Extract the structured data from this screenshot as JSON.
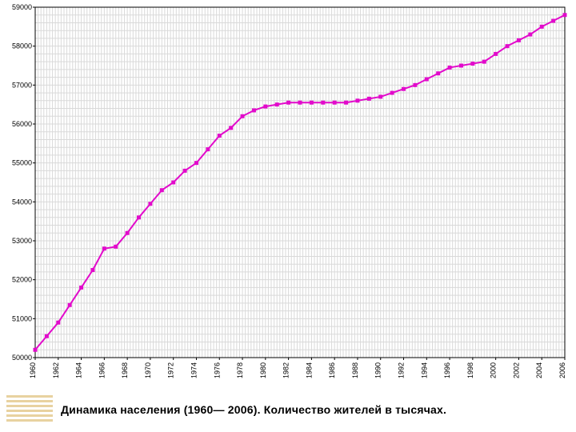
{
  "chart": {
    "type": "line",
    "background_color": "#ffffff",
    "plot_border_color": "#000000",
    "plot_border_width": 1,
    "grid_color": "#d9d9d9",
    "grid_width": 1,
    "x": {
      "min": 1960,
      "max": 2006,
      "tick_step": 2,
      "ticks": [
        1960,
        1962,
        1964,
        1966,
        1968,
        1970,
        1972,
        1974,
        1976,
        1978,
        1980,
        1982,
        1984,
        1986,
        1988,
        1990,
        1992,
        1994,
        1996,
        1998,
        2000,
        2002,
        2004,
        2006
      ],
      "label_color": "#000000",
      "label_fontsize": 9,
      "rotation": 90,
      "minor_grid_every": 0.25
    },
    "y": {
      "min": 50000,
      "max": 59000,
      "tick_step": 1000,
      "ticks": [
        50000,
        51000,
        52000,
        53000,
        54000,
        55000,
        56000,
        57000,
        58000,
        59000
      ],
      "label_color": "#000000",
      "label_fontsize": 9,
      "minor_grid_every": 200
    },
    "series": {
      "color": "#e20acb",
      "line_width": 2,
      "marker": "square",
      "marker_size": 5,
      "marker_fill": "#e20acb",
      "points": [
        [
          1960,
          50200
        ],
        [
          1961,
          50550
        ],
        [
          1962,
          50900
        ],
        [
          1963,
          51350
        ],
        [
          1964,
          51800
        ],
        [
          1965,
          52250
        ],
        [
          1966,
          52800
        ],
        [
          1967,
          52850
        ],
        [
          1968,
          53200
        ],
        [
          1969,
          53600
        ],
        [
          1970,
          53950
        ],
        [
          1971,
          54300
        ],
        [
          1972,
          54500
        ],
        [
          1973,
          54800
        ],
        [
          1974,
          55000
        ],
        [
          1975,
          55350
        ],
        [
          1976,
          55700
        ],
        [
          1977,
          55900
        ],
        [
          1978,
          56200
        ],
        [
          1979,
          56350
        ],
        [
          1980,
          56450
        ],
        [
          1981,
          56500
        ],
        [
          1982,
          56550
        ],
        [
          1983,
          56550
        ],
        [
          1984,
          56550
        ],
        [
          1985,
          56550
        ],
        [
          1986,
          56550
        ],
        [
          1987,
          56550
        ],
        [
          1988,
          56600
        ],
        [
          1989,
          56650
        ],
        [
          1990,
          56700
        ],
        [
          1991,
          56800
        ],
        [
          1992,
          56900
        ],
        [
          1993,
          57000
        ],
        [
          1994,
          57150
        ],
        [
          1995,
          57300
        ],
        [
          1996,
          57450
        ],
        [
          1997,
          57500
        ],
        [
          1998,
          57550
        ],
        [
          1999,
          57600
        ],
        [
          2000,
          57800
        ],
        [
          2001,
          58000
        ],
        [
          2002,
          58150
        ],
        [
          2003,
          58300
        ],
        [
          2004,
          58500
        ],
        [
          2005,
          58650
        ],
        [
          2006,
          58800
        ]
      ]
    }
  },
  "caption": {
    "text": "Динамика населения (1960— 2006). Количество жителей в тысячах.",
    "fontsize": 14,
    "fontweight": "bold",
    "color": "#000000",
    "deco_colors": [
      "#e8d2a0",
      "#ffffff"
    ]
  }
}
